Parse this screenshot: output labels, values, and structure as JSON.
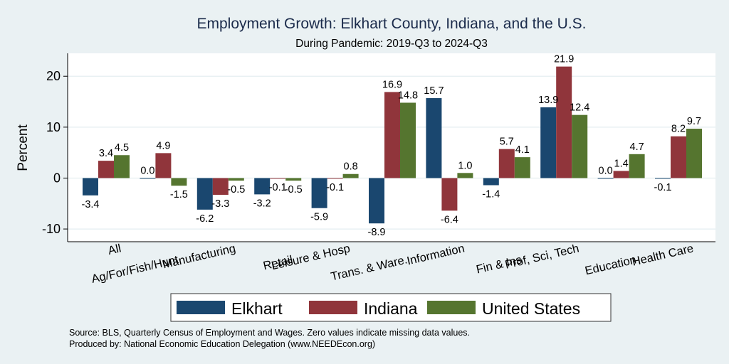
{
  "chart_data": {
    "type": "bar",
    "title": "Employment Growth: Elkhart County, Indiana, and the U.S.",
    "subtitle": "During Pandemic: 2019-Q3 to 2024-Q3",
    "xlabel": "",
    "ylabel": "Percent",
    "ylim": [
      -12.5,
      24.5
    ],
    "yticks": [
      -10,
      0,
      10,
      20
    ],
    "grid": true,
    "legend_position": "bottom",
    "categories": [
      "All",
      "Ag/For/Fish/Hunt",
      "Manufacturing",
      "Retail",
      "Leisure & Hosp",
      "Trans. & Ware.",
      "Information",
      "Fin & Ins",
      "Prof, Sci, Tech",
      "Education",
      "Health Care"
    ],
    "series": [
      {
        "name": "Elkhart",
        "color": "#1a476f",
        "values": [
          -3.4,
          0.0,
          -6.2,
          -3.2,
          -5.9,
          -8.9,
          15.7,
          -1.4,
          13.9,
          0.0,
          -0.1
        ]
      },
      {
        "name": "Indiana",
        "color": "#90353b",
        "values": [
          3.4,
          4.9,
          -3.3,
          -0.1,
          -0.1,
          16.9,
          -6.4,
          5.7,
          21.9,
          1.4,
          8.2
        ]
      },
      {
        "name": "United States",
        "color": "#55752f",
        "values": [
          4.5,
          -1.5,
          -0.5,
          -0.5,
          0.8,
          14.8,
          1.0,
          4.1,
          12.4,
          4.7,
          9.7
        ]
      }
    ],
    "notes": [
      "Source: BLS, Quarterly Census of Employment and Wages. Zero values indicate missing data values.",
      "Produced by: National Economic Education Delegation (www.NEEDEcon.org)"
    ]
  }
}
